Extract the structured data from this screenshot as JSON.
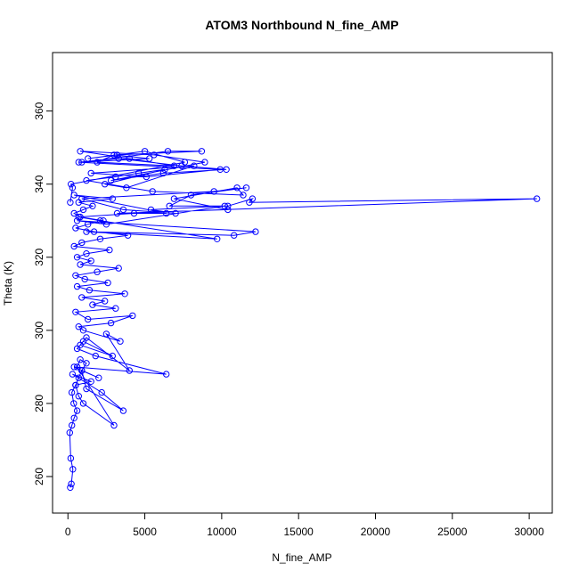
{
  "chart_data": {
    "type": "scatter",
    "title": "ATOM3 Northbound N_fine_AMP",
    "xlabel": "N_fine_AMP",
    "ylabel": "Theta (K)",
    "xlim": [
      -1000,
      31500
    ],
    "ylim": [
      250,
      376
    ],
    "x_ticks": [
      0,
      5000,
      10000,
      15000,
      20000,
      25000,
      30000
    ],
    "y_ticks": [
      260,
      280,
      300,
      320,
      340,
      360
    ],
    "grid": false,
    "legend": "none",
    "colors": {
      "series": "#0000ff",
      "axes": "#000000"
    },
    "series": [
      {
        "style": "lines+points (open circles)",
        "x": [
          150,
          220,
          320,
          180,
          120,
          260,
          400,
          600,
          380,
          250,
          500,
          700,
          900,
          1200,
          800,
          600,
          3000,
          1000,
          700,
          500,
          1500,
          300,
          2200,
          3600,
          1200,
          900,
          2000,
          400,
          6400,
          1800,
          600,
          1000,
          2900,
          800,
          1200,
          4000,
          2500,
          3400,
          1000,
          700,
          2800,
          4200,
          1300,
          500,
          3100,
          1600,
          2400,
          900,
          3700,
          1400,
          600,
          2600,
          1100,
          500,
          1900,
          3300,
          800,
          1500,
          600,
          1200,
          2700,
          400,
          900,
          2100,
          3900,
          1700,
          500,
          1300,
          2300,
          800,
          400,
          1000,
          1600,
          700,
          2900,
          400,
          6400,
          4300,
          700,
          2100,
          9700,
          1200,
          10800,
          12200,
          600,
          2500,
          10200,
          5400,
          7000,
          3600,
          900,
          9500,
          11600,
          8000,
          6600,
          10400,
          12000,
          11800,
          30500,
          3200,
          10400,
          6900,
          11000,
          11400,
          5500,
          1200,
          3100,
          4600,
          6300,
          2400,
          3800,
          8200,
          1500,
          5100,
          9900,
          700,
          3300,
          7400,
          10300,
          6200,
          2800,
          8900,
          5600,
          800,
          4000,
          6900,
          1900,
          3000,
          5300,
          900,
          6500,
          8700,
          3200,
          1300,
          5000,
          7600,
          200,
          300,
          150
        ],
        "y": [
          257,
          258,
          262,
          265,
          272,
          274,
          276,
          278,
          280,
          283,
          285,
          287,
          289,
          291,
          292,
          290,
          274,
          280,
          282,
          285,
          286,
          288,
          283,
          278,
          284,
          289,
          287,
          290,
          288,
          293,
          295,
          297,
          293,
          296,
          298,
          289,
          299,
          297,
          300,
          301,
          302,
          304,
          303,
          305,
          306,
          307,
          308,
          309,
          310,
          311,
          312,
          313,
          314,
          315,
          316,
          317,
          318,
          319,
          320,
          321,
          322,
          323,
          324,
          325,
          326,
          327,
          328,
          329,
          330,
          331,
          332,
          333,
          334,
          335,
          336,
          337,
          332,
          332,
          331,
          330,
          325,
          327,
          326,
          327,
          330,
          329,
          334,
          333,
          332,
          333,
          336,
          338,
          339,
          337,
          334,
          334,
          336,
          335,
          336,
          332,
          333,
          336,
          339,
          337,
          338,
          341,
          342,
          343,
          344,
          340,
          339,
          345,
          343,
          342,
          344,
          346,
          347,
          345,
          344,
          343,
          341,
          346,
          348,
          349,
          347,
          345,
          346,
          348,
          347,
          346,
          349,
          349,
          348,
          347,
          349,
          346,
          340,
          339,
          335
        ]
      }
    ]
  }
}
